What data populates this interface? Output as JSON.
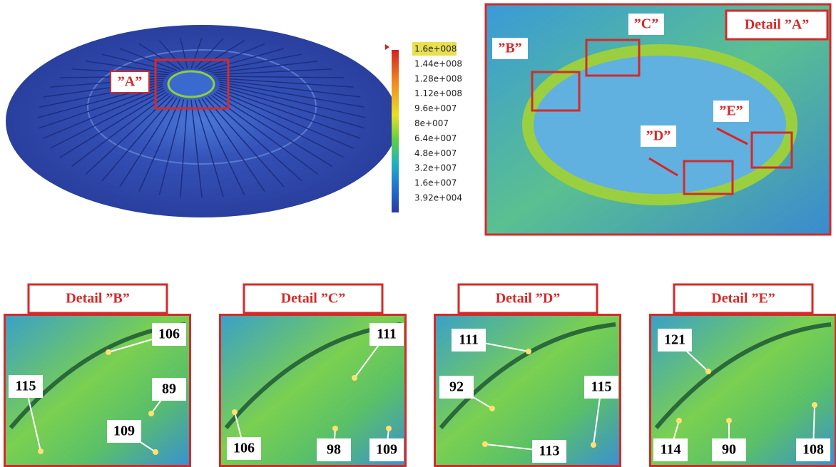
{
  "overview": {
    "label": "”A”"
  },
  "colorbar": {
    "labels": [
      "1.6e+008",
      "1.44e+008",
      "1.28e+008",
      "1.12e+008",
      "9.6e+007",
      "8e+007",
      "6.4e+007",
      "4.8e+007",
      "3.2e+007",
      "1.6e+007",
      "3.92e+004"
    ]
  },
  "detail_a": {
    "title": "Detail ”A”",
    "labels": [
      "”B”",
      "”C”",
      "”D”",
      "”E”"
    ]
  },
  "details": [
    {
      "title": "Detail ”B”",
      "callouts": [
        106,
        115,
        89,
        109
      ]
    },
    {
      "title": "Detail ”C”",
      "callouts": [
        111,
        106,
        98,
        109
      ]
    },
    {
      "title": "Detail ”D”",
      "callouts": [
        111,
        92,
        115,
        113
      ]
    },
    {
      "title": "Detail ”E”",
      "callouts": [
        121,
        114,
        90,
        108
      ]
    }
  ]
}
